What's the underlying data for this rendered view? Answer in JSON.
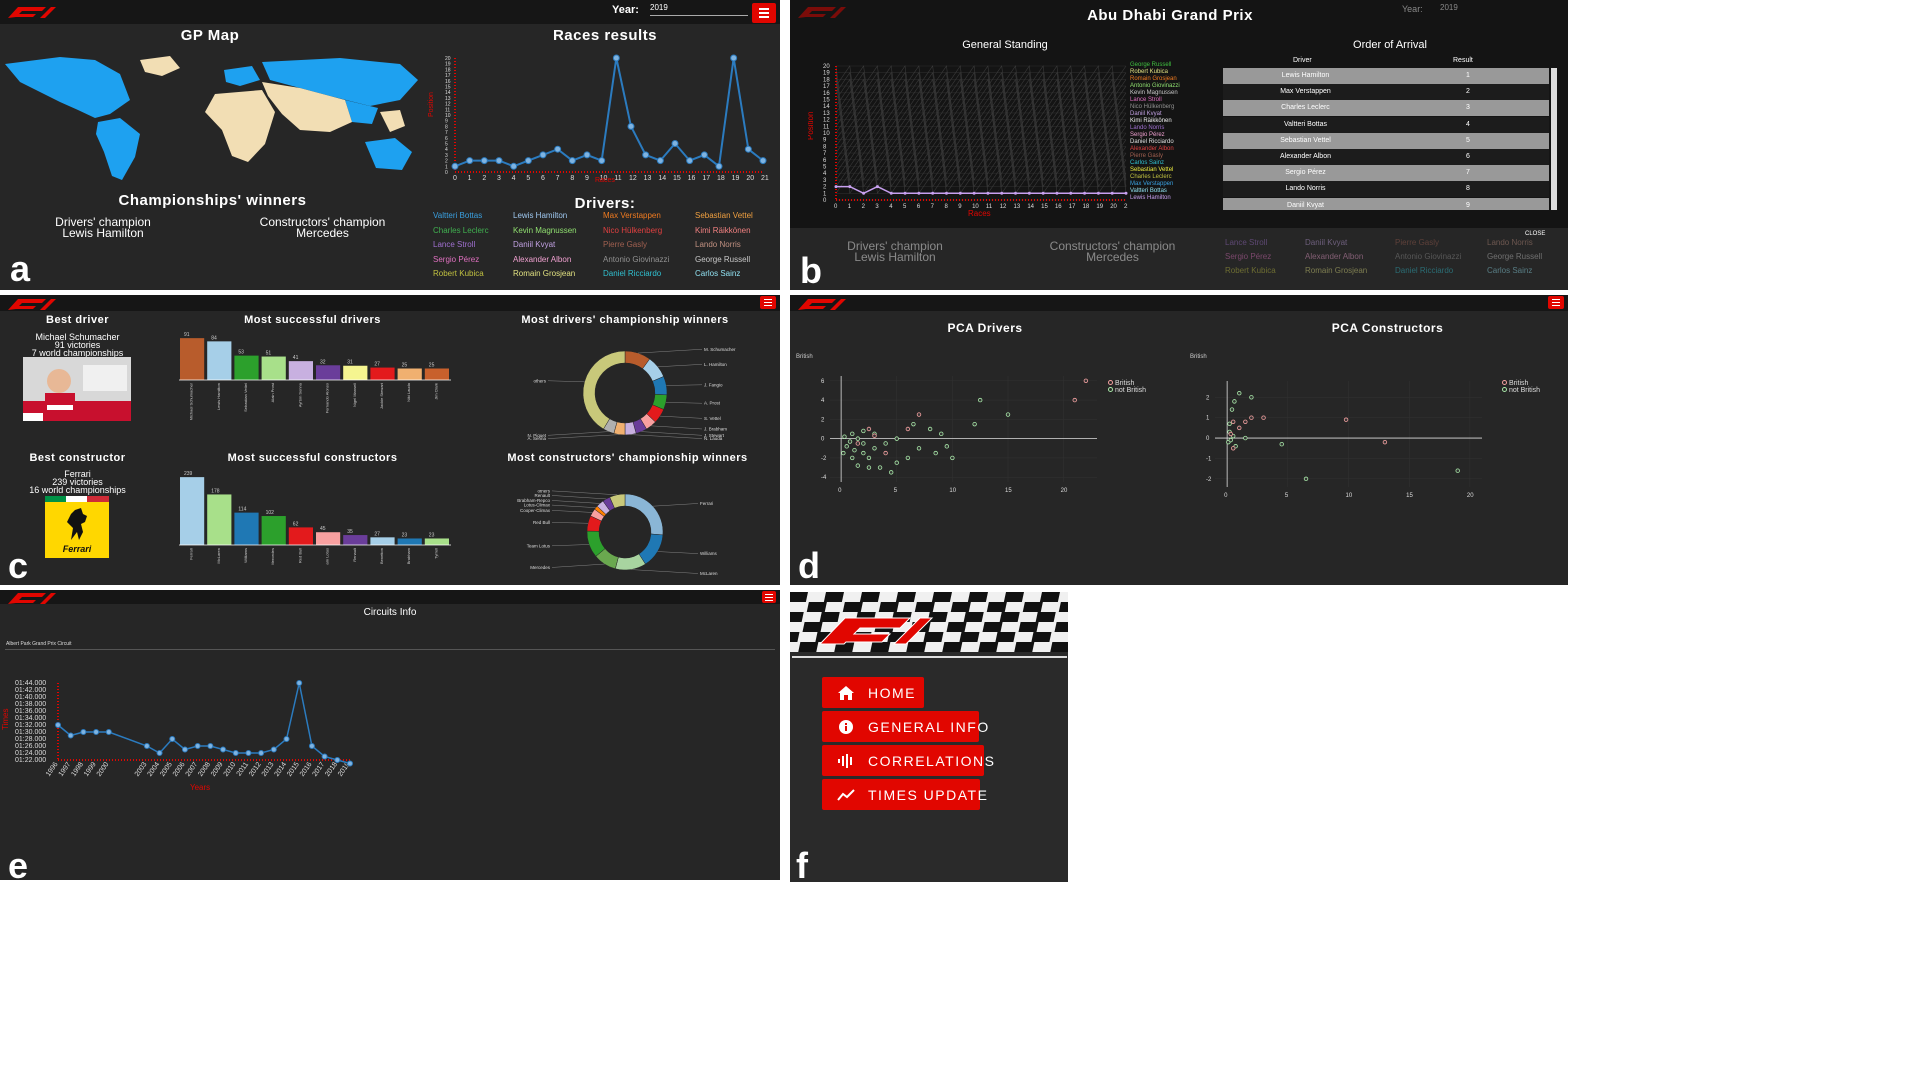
{
  "panel_a": {
    "letter": "a",
    "year_label": "Year:",
    "year_value": "2019",
    "map_title": "GP Map",
    "results_title": "Races results",
    "results_ylabel": "Position",
    "results_xlabel": "Races",
    "champ_title": "Championships' winners",
    "drivers_champ_label": "Drivers' champion",
    "drivers_champ_value": "Lewis Hamilton",
    "constructors_champ_label": "Constructors' champion",
    "constructors_champ_value": "Mercedes",
    "drivers_title": "Drivers:",
    "drivers": [
      {
        "name": "Valtteri Bottas",
        "color": "#3aa0e0"
      },
      {
        "name": "Lewis Hamilton",
        "color": "#9fc8f0"
      },
      {
        "name": "Max Verstappen",
        "color": "#f07b20"
      },
      {
        "name": "Sebastian Vettel",
        "color": "#f0a040"
      },
      {
        "name": "Charles Leclerc",
        "color": "#40b050"
      },
      {
        "name": "Kevin Magnussen",
        "color": "#90e070"
      },
      {
        "name": "Nico Hülkenberg",
        "color": "#e04040"
      },
      {
        "name": "Kimi Räikkönen",
        "color": "#f08080"
      },
      {
        "name": "Lance Stroll",
        "color": "#a070d0"
      },
      {
        "name": "Daniil Kvyat",
        "color": "#c0a0e0"
      },
      {
        "name": "Pierre Gasly",
        "color": "#a06050"
      },
      {
        "name": "Lando Norris",
        "color": "#c09080"
      },
      {
        "name": "Sergio Pérez",
        "color": "#e070c0"
      },
      {
        "name": "Alexander Albon",
        "color": "#f0a0d0"
      },
      {
        "name": "Antonio Giovinazzi",
        "color": "#909090"
      },
      {
        "name": "George Russell",
        "color": "#c8c8c8"
      },
      {
        "name": "Robert Kubica",
        "color": "#c0c040"
      },
      {
        "name": "Romain Grosjean",
        "color": "#e0e080"
      },
      {
        "name": "Daniel Ricciardo",
        "color": "#30c0d0"
      },
      {
        "name": "Carlos Sainz",
        "color": "#90e0f0"
      }
    ],
    "races_chart": {
      "type": "line",
      "x": [
        0,
        1,
        2,
        3,
        4,
        5,
        6,
        7,
        8,
        9,
        10,
        11,
        12,
        13,
        14,
        15,
        16,
        17,
        18,
        19,
        20,
        21
      ],
      "y": [
        1,
        2,
        2,
        2,
        1,
        2,
        3,
        4,
        2,
        3,
        2,
        20,
        8,
        3,
        2,
        5,
        2,
        3,
        1,
        20,
        4,
        2
      ],
      "ylim": [
        0,
        20
      ],
      "yticks": [
        "20",
        "19",
        "18",
        "17",
        "16",
        "15",
        "14",
        "13",
        "12",
        "11",
        "10",
        "9",
        "8",
        "7",
        "6",
        "5",
        "4",
        "3",
        "2",
        "1",
        "0"
      ]
    }
  },
  "panel_b": {
    "letter": "b",
    "title": "Abu Dhabi Grand Prix",
    "year_label": "Year:",
    "year_value": "2019",
    "standing_title": "General Standing",
    "standing_ylabel": "Position",
    "standing_xlabel": "Races",
    "order_title": "Order of Arrival",
    "col_driver": "Driver",
    "col_result": "Result",
    "rows": [
      {
        "driver": "Lewis Hamilton",
        "result": "1"
      },
      {
        "driver": "Max Verstappen",
        "result": "2"
      },
      {
        "driver": "Charles Leclerc",
        "result": "3"
      },
      {
        "driver": "Valtteri Bottas",
        "result": "4"
      },
      {
        "driver": "Sebastian Vettel",
        "result": "5"
      },
      {
        "driver": "Alexander Albon",
        "result": "6"
      },
      {
        "driver": "Sergio Pérez",
        "result": "7"
      },
      {
        "driver": "Lando Norris",
        "result": "8"
      },
      {
        "driver": "Daniil Kvyat",
        "result": "9"
      }
    ],
    "legend": [
      {
        "name": "George Russell",
        "color": "#40c040"
      },
      {
        "name": "Robert Kubica",
        "color": "#e0e080"
      },
      {
        "name": "Romain Grosjean",
        "color": "#f07b20"
      },
      {
        "name": "Antonio Giovinazzi",
        "color": "#90e070"
      },
      {
        "name": "Kevin Magnussen",
        "color": "#c8c8c8"
      },
      {
        "name": "Lance Stroll",
        "color": "#e070c0"
      },
      {
        "name": "Nico Hülkenberg",
        "color": "#909090"
      },
      {
        "name": "Daniil Kvyat",
        "color": "#c0a0e0"
      },
      {
        "name": "Kimi Räikkönen",
        "color": "#f0f0f0"
      },
      {
        "name": "Lando Norris",
        "color": "#a070d0"
      },
      {
        "name": "Sergio Pérez",
        "color": "#f0a0d0"
      },
      {
        "name": "Daniel Ricciardo",
        "color": "#e0e0e0"
      },
      {
        "name": "Alexander Albon",
        "color": "#e04040"
      },
      {
        "name": "Pierre Gasly",
        "color": "#a06050"
      },
      {
        "name": "Carlos Sainz",
        "color": "#30c0d0"
      },
      {
        "name": "Sebastian Vettel",
        "color": "#f0f040"
      },
      {
        "name": "Charles Leclerc",
        "color": "#c0c040"
      },
      {
        "name": "Max Verstappen",
        "color": "#3aa0e0"
      },
      {
        "name": "Valtteri Bottas",
        "color": "#90e0f0"
      },
      {
        "name": "Lewis Hamilton",
        "color": "#c8a0f0"
      }
    ],
    "standing_chart": {
      "type": "line",
      "x": [
        0,
        1,
        2,
        3,
        4,
        5,
        6,
        7,
        8,
        9,
        10,
        11,
        12,
        13,
        14,
        15,
        16,
        17,
        18,
        19,
        20,
        21
      ],
      "highlight": [
        2,
        2,
        1,
        2,
        1,
        1,
        1,
        1,
        1,
        1,
        1,
        1,
        1,
        1,
        1,
        1,
        1,
        1,
        1,
        1,
        1,
        1
      ],
      "ylim": [
        0,
        20
      ]
    },
    "close_label": "CLOSE",
    "behind_drivers_label": "Drivers' champion",
    "behind_drivers_value": "Lewis Hamilton",
    "behind_constructors_label": "Constructors' champion",
    "behind_constructors_value": "Mercedes",
    "behind_names": [
      "Lance Stroll",
      "Daniil Kvyat",
      "Pierre Gasly",
      "Lando Norris",
      "Sergio Pérez",
      "Alexander Albon",
      "Antonio Giovinazzi",
      "George Russell",
      "Robert Kubica",
      "Romain Grosjean",
      "Daniel Ricciardo",
      "Carlos Sainz"
    ]
  },
  "panel_c": {
    "letter": "c",
    "best_driver_title": "Best driver",
    "best_driver_name": "Michael Schumacher",
    "best_driver_wins": "91 victories",
    "best_driver_titles": "7 world championships",
    "best_constructor_title": "Best constructor",
    "best_constructor_name": "Ferrari",
    "best_constructor_wins": "239 victories",
    "best_constructor_titles": "16 world championships",
    "ferrari_word": "Ferrari",
    "drivers_bar_title": "Most successful drivers",
    "constructors_bar_title": "Most successful constructors",
    "drivers_donut_title": "Most drivers' championship winners",
    "constructors_donut_title": "Most constructors' championship winners",
    "drivers_bar": {
      "type": "bar",
      "categories": [
        "Michael Schumacher",
        "Lewis Hamilton",
        "Sebastian Vettel",
        "Alain Prost",
        "Ayrton Senna",
        "Fernando Alonso",
        "Nigel Mansell",
        "Jackie Stewart",
        "Niki Lauda",
        "Jim Clark"
      ],
      "values": [
        91,
        84,
        53,
        51,
        41,
        32,
        31,
        27,
        25,
        25
      ],
      "colors": [
        "#b85c2c",
        "#a6cfe8",
        "#2ca02c",
        "#a8e08a",
        "#c8b0e0",
        "#6a3d9a",
        "#f5f590",
        "#e31a1c",
        "#f0b070",
        "#c8602c"
      ],
      "ylim": [
        0,
        100
      ]
    },
    "constructors_bar": {
      "type": "bar",
      "categories": [
        "Ferrari",
        "McLaren",
        "Williams",
        "Mercedes",
        "Red Bull",
        "Team Lotus",
        "Renault",
        "Benetton",
        "Brabham",
        "Tyrrell"
      ],
      "values": [
        239,
        178,
        114,
        102,
        62,
        45,
        35,
        27,
        23,
        23
      ],
      "colors": [
        "#a6cfe8",
        "#a8e08a",
        "#1f78b4",
        "#2ca02c",
        "#e31a1c",
        "#f8a0a0",
        "#6a3d9a",
        "#a6cfe8",
        "#1f78b4",
        "#a8e08a"
      ],
      "ylim": [
        0,
        250
      ]
    },
    "drivers_donut": {
      "type": "pie",
      "labels": [
        "M. Schumacher",
        "L. Hamilton",
        "J. Fangio",
        "A. Prost",
        "S. Vettel",
        "J. Brabham",
        "J. Stewart",
        "N. Lauda",
        "A. Senna",
        "N. Piquet",
        "others"
      ],
      "values": [
        7,
        6,
        5,
        4,
        4,
        3,
        3,
        3,
        3,
        3,
        29
      ],
      "colors": [
        "#b85c2c",
        "#a6cfe8",
        "#1f78b4",
        "#2ca02c",
        "#e31a1c",
        "#f8a0a0",
        "#6a3d9a",
        "#c8b0e0",
        "#f0b070",
        "#b0b0b0",
        "#c8c87a"
      ]
    },
    "constructors_donut": {
      "type": "pie",
      "labels": [
        "Ferrari",
        "Williams",
        "McLaren",
        "Mercedes",
        "Team Lotus",
        "Red Bull",
        "Cooper-Climax",
        "Lotus-Climax",
        "Brabham-Repco",
        "Renault",
        "others"
      ],
      "values": [
        16,
        9,
        8,
        6,
        7,
        4,
        2,
        1,
        2,
        2,
        4
      ],
      "colors": [
        "#8ab6d6",
        "#1f78b4",
        "#a8d4a0",
        "#6aa84f",
        "#2ca02c",
        "#e31a1c",
        "#f8a0a0",
        "#ff7f00",
        "#c8b0e0",
        "#6a3d9a",
        "#c8c87a"
      ]
    }
  },
  "panel_d": {
    "letter": "d",
    "drivers_title": "PCA Drivers",
    "constructors_title": "PCA Constructors",
    "filter_label": "British",
    "legend_a": "British",
    "legend_b": "not British",
    "color_a": "#f4a0a0",
    "color_b": "#a8e8a8",
    "drivers_scatter": {
      "type": "scatter",
      "xlim": [
        -1,
        23
      ],
      "ylim": [
        -4.5,
        6.5
      ],
      "xticks": [
        0,
        5,
        10,
        15,
        20
      ],
      "yticks": [
        -4,
        -2,
        0,
        2,
        4,
        6
      ],
      "british": [
        [
          22,
          6
        ],
        [
          21,
          4
        ],
        [
          7,
          2.5
        ],
        [
          6,
          1
        ],
        [
          3,
          0.3
        ],
        [
          1.5,
          -0.5
        ],
        [
          4,
          -1.5
        ],
        [
          2.5,
          1
        ]
      ],
      "not_british": [
        [
          12.5,
          4
        ],
        [
          15,
          2.5
        ],
        [
          12,
          1.5
        ],
        [
          10,
          -2
        ],
        [
          9,
          0.5
        ],
        [
          8,
          1
        ],
        [
          7,
          -1
        ],
        [
          6,
          -2
        ],
        [
          5,
          -2.5
        ],
        [
          5,
          0
        ],
        [
          4,
          -0.5
        ],
        [
          3,
          0.5
        ],
        [
          3,
          -1
        ],
        [
          2.5,
          -2
        ],
        [
          2,
          -1.5
        ],
        [
          2,
          -0.5
        ],
        [
          1.5,
          0
        ],
        [
          1.2,
          -1.2
        ],
        [
          1,
          -2
        ],
        [
          0.8,
          -0.3
        ],
        [
          0.5,
          -0.8
        ],
        [
          0.3,
          0.2
        ],
        [
          0.2,
          -1.5
        ],
        [
          1,
          0.5
        ],
        [
          2,
          0.8
        ],
        [
          3.5,
          -3
        ],
        [
          4.5,
          -3.5
        ],
        [
          2.5,
          -3
        ],
        [
          1.5,
          -2.8
        ],
        [
          6.5,
          1.5
        ],
        [
          8.5,
          -1.5
        ],
        [
          9.5,
          -0.8
        ]
      ]
    },
    "constructors_scatter": {
      "type": "scatter",
      "xlim": [
        -1,
        21
      ],
      "ylim": [
        -2.4,
        2.8
      ],
      "xticks": [
        0,
        5,
        10,
        15,
        20
      ],
      "yticks": [
        -2,
        -1,
        0,
        1,
        2
      ],
      "british": [
        [
          13,
          -0.2
        ],
        [
          9.8,
          0.9
        ],
        [
          3,
          1
        ],
        [
          2,
          1
        ],
        [
          1.5,
          0.8
        ],
        [
          1,
          0.5
        ],
        [
          0.5,
          -0.5
        ],
        [
          0.3,
          0.2
        ],
        [
          0.5,
          0.8
        ]
      ],
      "not_british": [
        [
          19,
          -1.6
        ],
        [
          6.5,
          -2
        ],
        [
          4.5,
          -0.3
        ],
        [
          1.5,
          0
        ],
        [
          1,
          2.2
        ],
        [
          0.6,
          1.8
        ],
        [
          0.4,
          1.4
        ],
        [
          0.2,
          0.7
        ],
        [
          0.1,
          -0.2
        ],
        [
          0.2,
          0.3
        ],
        [
          0.3,
          -0.1
        ],
        [
          0.5,
          0.1
        ],
        [
          2,
          2
        ],
        [
          0.7,
          -0.4
        ]
      ]
    }
  },
  "panel_e": {
    "letter": "e",
    "title": "Circuits Info",
    "circuit_name": "Albert Park Grand Prix Circuit",
    "ylabel": "Times",
    "xlabel": "Years",
    "times_chart": {
      "type": "line",
      "x": [
        "1996",
        "1997",
        "1998",
        "1999",
        "2000",
        "2003",
        "2004",
        "2005",
        "2006",
        "2007",
        "2008",
        "2009",
        "2010",
        "2011",
        "2012",
        "2013",
        "2014",
        "2015",
        "2016",
        "2017",
        "2018",
        "2019"
      ],
      "x_years": [
        1996,
        1997,
        1998,
        1999,
        2000,
        2003,
        2004,
        2005,
        2006,
        2007,
        2008,
        2009,
        2010,
        2011,
        2012,
        2013,
        2014,
        2015,
        2016,
        2017,
        2018,
        2019
      ],
      "y_seconds": [
        92,
        89,
        90,
        90,
        90,
        86,
        84,
        88,
        85,
        86,
        86,
        85,
        84,
        84,
        84,
        85,
        88,
        104,
        86,
        83,
        82,
        81
      ],
      "yticks": [
        "01:44.000",
        "01:42.000",
        "01:40.000",
        "01:38.000",
        "01:36.000",
        "01:34.000",
        "01:32.000",
        "01:30.000",
        "01:28.000",
        "01:26.000",
        "01:24.000",
        "01:22.000"
      ],
      "ylim_seconds": [
        82,
        104
      ]
    }
  },
  "panel_f": {
    "letter": "f",
    "menu": [
      {
        "label": "HOME",
        "icon": "home-icon"
      },
      {
        "label": "GENERAL INFO",
        "icon": "info-icon"
      },
      {
        "label": "CORRELATIONS",
        "icon": "waveform-icon"
      },
      {
        "label": "TIMES UPDATE",
        "icon": "trend-icon"
      }
    ]
  }
}
